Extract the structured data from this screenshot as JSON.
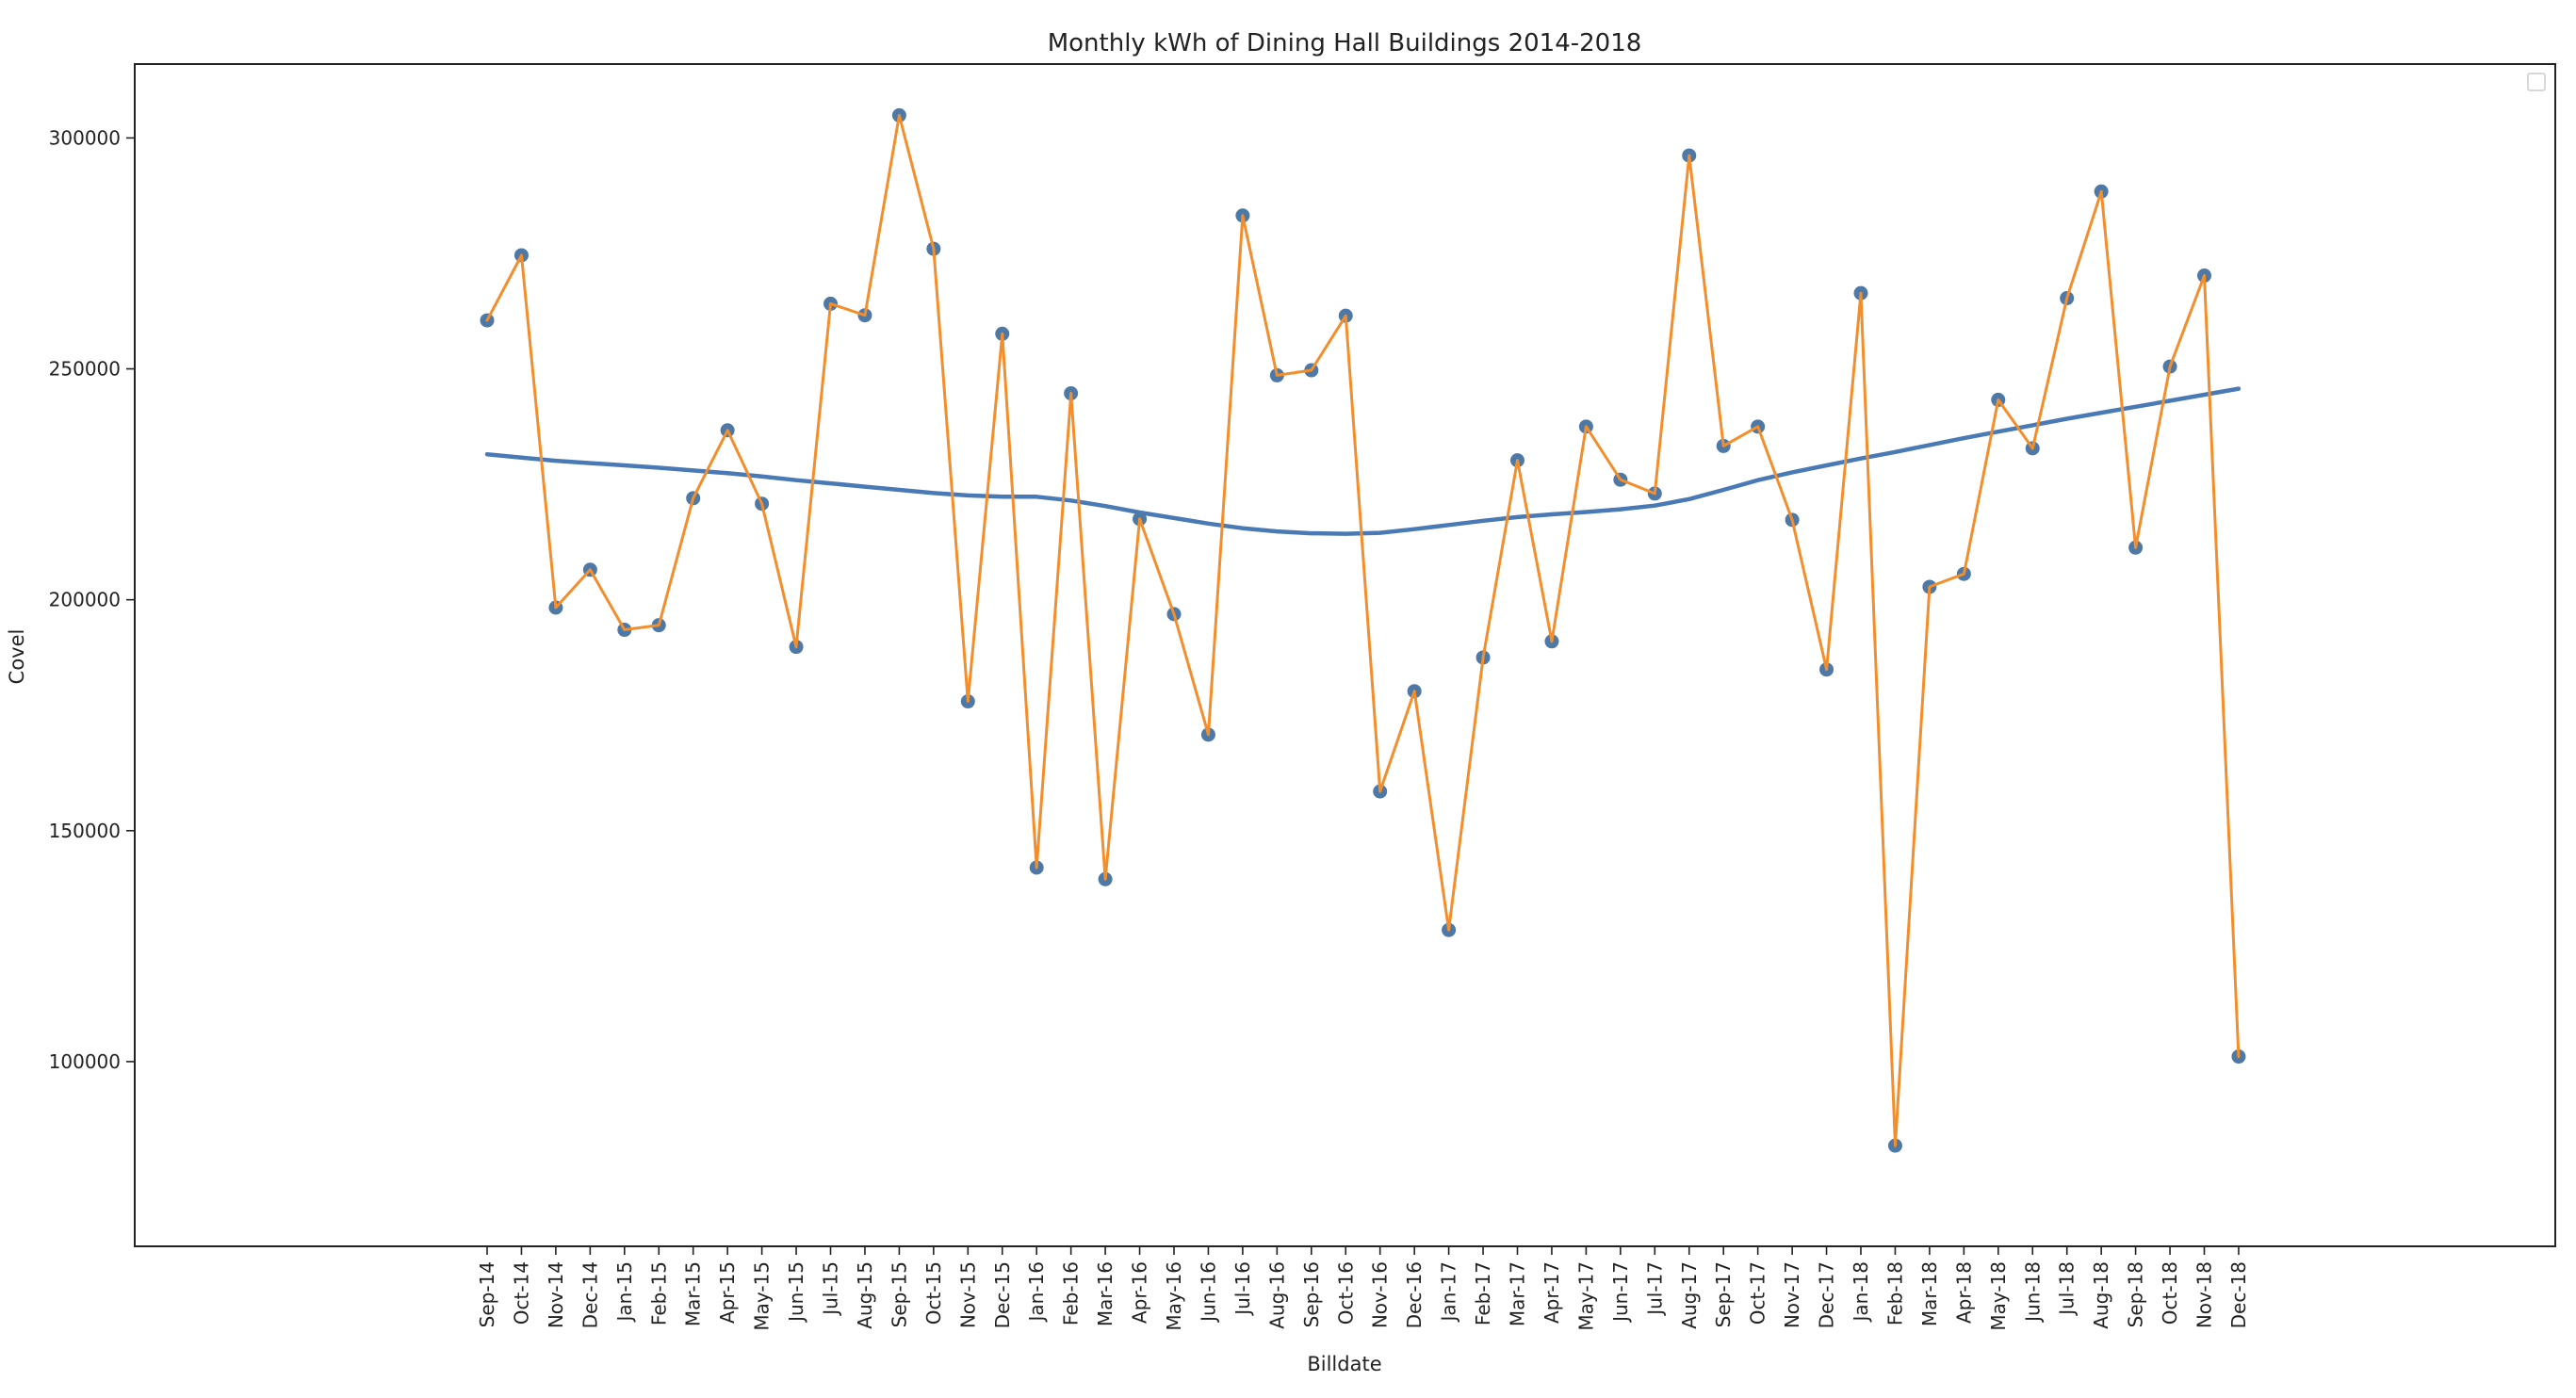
{
  "chart_data": {
    "type": "line",
    "title": "Monthly kWh of Dining Hall Buildings 2014-2018",
    "xlabel": "Billdate",
    "ylabel": "Covel",
    "ylim": [
      60000,
      316000
    ],
    "yticks": [
      100000,
      150000,
      200000,
      250000,
      300000
    ],
    "grid": false,
    "legend": {
      "placement": "top-right",
      "entries": []
    },
    "categories": [
      "Sep-14",
      "Oct-14",
      "Nov-14",
      "Dec-14",
      "Jan-15",
      "Feb-15",
      "Mar-15",
      "Apr-15",
      "May-15",
      "Jun-15",
      "Jul-15",
      "Aug-15",
      "Sep-15",
      "Oct-15",
      "Nov-15",
      "Dec-15",
      "Jan-16",
      "Feb-16",
      "Mar-16",
      "Apr-16",
      "May-16",
      "Jun-16",
      "Jul-16",
      "Aug-16",
      "Sep-16",
      "Oct-16",
      "Nov-16",
      "Dec-16",
      "Jan-17",
      "Feb-17",
      "Mar-17",
      "Apr-17",
      "May-17",
      "Jun-17",
      "Jul-17",
      "Aug-17",
      "Sep-17",
      "Oct-17",
      "Nov-17",
      "Dec-17",
      "Jan-18",
      "Feb-18",
      "Mar-18",
      "Apr-18",
      "May-18",
      "Jun-18",
      "Jul-18",
      "Aug-18",
      "Sep-18",
      "Oct-18",
      "Nov-18",
      "Dec-18"
    ],
    "series": [
      {
        "kind": "line-with-markers",
        "color": "#f28e2b",
        "marker_color": "#4e79a7",
        "values": [
          260500,
          274600,
          198300,
          206500,
          193500,
          194500,
          222000,
          236700,
          220800,
          189800,
          264100,
          261600,
          304900,
          276000,
          178000,
          257600,
          142000,
          244700,
          139500,
          217500,
          196900,
          170800,
          283200,
          248600,
          249700,
          261500,
          158500,
          180200,
          128500,
          187500,
          230200,
          191000,
          237500,
          226000,
          223000,
          296200,
          233300,
          237500,
          217300,
          184900,
          266400,
          81800,
          202800,
          205600,
          243300,
          232800,
          265300,
          288400,
          211300,
          250500,
          270200,
          101100
        ]
      },
      {
        "kind": "trend",
        "color": "#4a7ab5",
        "values": [
          231500,
          230800,
          230100,
          229600,
          229100,
          228600,
          228000,
          227400,
          226700,
          225900,
          225200,
          224500,
          223800,
          223100,
          222600,
          222300,
          222300,
          221500,
          220300,
          218900,
          217700,
          216500,
          215500,
          214800,
          214400,
          214300,
          214500,
          215300,
          216200,
          217100,
          217900,
          218500,
          219000,
          219600,
          220400,
          221800,
          223800,
          225900,
          227600,
          229100,
          230600,
          232000,
          233500,
          235000,
          236400,
          237800,
          239200,
          240500,
          241800,
          243100,
          244400,
          245700
        ]
      }
    ]
  }
}
